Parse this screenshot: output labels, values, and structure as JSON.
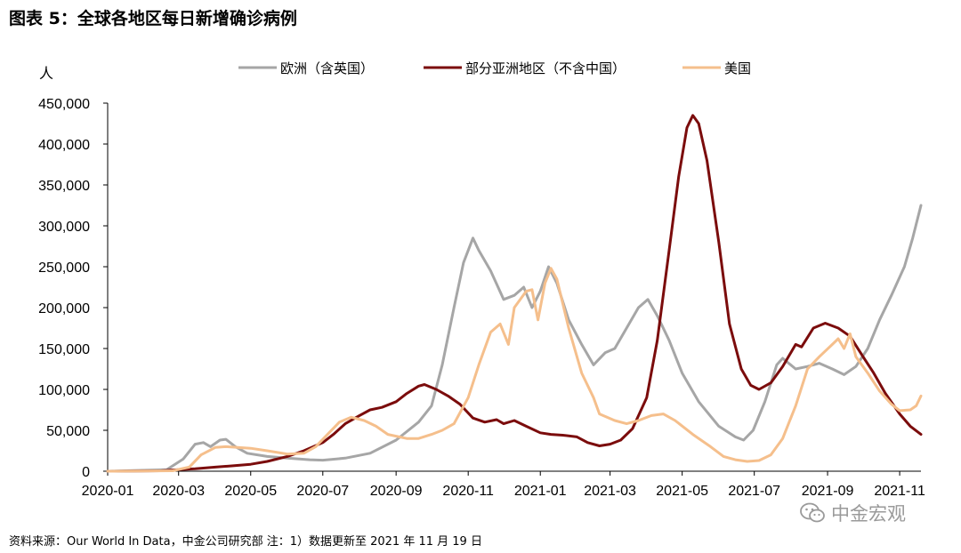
{
  "title": "图表 5：全球各地区每日新增确诊病例",
  "source": "资料来源：Our World In Data，中金公司研究部  注：1）数据更新至 2021 年 11 月 19 日",
  "watermark": {
    "text": "中金宏观",
    "icon": "wechat-icon",
    "color": "#9a9a9a"
  },
  "chart_data": {
    "type": "line",
    "ylabel": "人",
    "ylim": [
      0,
      450000
    ],
    "yticks": [
      0,
      50000,
      100000,
      150000,
      200000,
      250000,
      300000,
      350000,
      400000,
      450000
    ],
    "ytick_labels": [
      "0",
      "50,000",
      "100,000",
      "150,000",
      "200,000",
      "250,000",
      "300,000",
      "350,000",
      "400,000",
      "450,000"
    ],
    "xlim": [
      "2020-01-01",
      "2021-11-19"
    ],
    "xticks": [
      "2020-01-01",
      "2020-03-01",
      "2020-05-01",
      "2020-07-01",
      "2020-09-01",
      "2020-11-01",
      "2021-01-01",
      "2021-03-01",
      "2021-05-01",
      "2021-07-01",
      "2021-09-01",
      "2021-11-01"
    ],
    "xtick_labels": [
      "2020-01",
      "2020-03",
      "2020-05",
      "2020-07",
      "2020-09",
      "2020-11",
      "2021-01",
      "2021-03",
      "2021-05",
      "2021-07",
      "2021-09",
      "2021-11"
    ],
    "legend_position": "top",
    "grid": false,
    "series": [
      {
        "name": "欧洲（含英国）",
        "color": "#a6a6a6",
        "points": [
          [
            "2020-01-01",
            0
          ],
          [
            "2020-02-20",
            2000
          ],
          [
            "2020-03-05",
            15000
          ],
          [
            "2020-03-15",
            33000
          ],
          [
            "2020-03-22",
            35000
          ],
          [
            "2020-03-28",
            30000
          ],
          [
            "2020-04-05",
            38000
          ],
          [
            "2020-04-10",
            39000
          ],
          [
            "2020-04-18",
            30000
          ],
          [
            "2020-04-28",
            22000
          ],
          [
            "2020-05-15",
            18000
          ],
          [
            "2020-06-01",
            16000
          ],
          [
            "2020-06-20",
            14000
          ],
          [
            "2020-07-01",
            13500
          ],
          [
            "2020-07-20",
            16000
          ],
          [
            "2020-08-10",
            22000
          ],
          [
            "2020-09-01",
            38000
          ],
          [
            "2020-09-20",
            60000
          ],
          [
            "2020-10-01",
            80000
          ],
          [
            "2020-10-10",
            130000
          ],
          [
            "2020-10-20",
            200000
          ],
          [
            "2020-10-28",
            255000
          ],
          [
            "2020-11-05",
            285000
          ],
          [
            "2020-11-10",
            270000
          ],
          [
            "2020-11-20",
            245000
          ],
          [
            "2020-12-01",
            210000
          ],
          [
            "2020-12-10",
            215000
          ],
          [
            "2020-12-18",
            225000
          ],
          [
            "2020-12-25",
            200000
          ],
          [
            "2021-01-01",
            220000
          ],
          [
            "2021-01-08",
            250000
          ],
          [
            "2021-01-15",
            230000
          ],
          [
            "2021-01-25",
            185000
          ],
          [
            "2021-02-05",
            155000
          ],
          [
            "2021-02-15",
            130000
          ],
          [
            "2021-02-25",
            145000
          ],
          [
            "2021-03-05",
            150000
          ],
          [
            "2021-03-15",
            175000
          ],
          [
            "2021-03-25",
            200000
          ],
          [
            "2021-04-02",
            210000
          ],
          [
            "2021-04-10",
            190000
          ],
          [
            "2021-04-20",
            160000
          ],
          [
            "2021-05-01",
            120000
          ],
          [
            "2021-05-15",
            85000
          ],
          [
            "2021-06-01",
            55000
          ],
          [
            "2021-06-15",
            42000
          ],
          [
            "2021-06-22",
            38000
          ],
          [
            "2021-06-30",
            50000
          ],
          [
            "2021-07-10",
            85000
          ],
          [
            "2021-07-20",
            130000
          ],
          [
            "2021-07-25",
            138000
          ],
          [
            "2021-08-05",
            125000
          ],
          [
            "2021-08-15",
            128000
          ],
          [
            "2021-08-25",
            132000
          ],
          [
            "2021-09-05",
            125000
          ],
          [
            "2021-09-15",
            118000
          ],
          [
            "2021-09-25",
            128000
          ],
          [
            "2021-10-05",
            150000
          ],
          [
            "2021-10-15",
            185000
          ],
          [
            "2021-10-25",
            215000
          ],
          [
            "2021-11-05",
            250000
          ],
          [
            "2021-11-12",
            285000
          ],
          [
            "2021-11-19",
            325000
          ]
        ]
      },
      {
        "name": "部分亚洲地区（不含中国）",
        "color": "#7b0c0c",
        "points": [
          [
            "2020-01-01",
            0
          ],
          [
            "2020-02-15",
            500
          ],
          [
            "2020-03-01",
            2000
          ],
          [
            "2020-03-15",
            3000
          ],
          [
            "2020-04-01",
            5000
          ],
          [
            "2020-04-15",
            6500
          ],
          [
            "2020-05-01",
            8500
          ],
          [
            "2020-05-15",
            12000
          ],
          [
            "2020-06-01",
            18000
          ],
          [
            "2020-06-15",
            25000
          ],
          [
            "2020-07-01",
            35000
          ],
          [
            "2020-07-10",
            45000
          ],
          [
            "2020-07-20",
            58000
          ],
          [
            "2020-08-01",
            68000
          ],
          [
            "2020-08-10",
            75000
          ],
          [
            "2020-08-20",
            78000
          ],
          [
            "2020-09-01",
            85000
          ],
          [
            "2020-09-10",
            95000
          ],
          [
            "2020-09-20",
            104000
          ],
          [
            "2020-09-25",
            106000
          ],
          [
            "2020-10-05",
            100000
          ],
          [
            "2020-10-15",
            92000
          ],
          [
            "2020-10-25",
            82000
          ],
          [
            "2020-11-05",
            65000
          ],
          [
            "2020-11-15",
            60000
          ],
          [
            "2020-11-25",
            63000
          ],
          [
            "2020-12-01",
            58000
          ],
          [
            "2020-12-10",
            62000
          ],
          [
            "2020-12-20",
            55000
          ],
          [
            "2021-01-01",
            47000
          ],
          [
            "2021-01-10",
            45000
          ],
          [
            "2021-01-20",
            44000
          ],
          [
            "2021-02-01",
            42000
          ],
          [
            "2021-02-10",
            35000
          ],
          [
            "2021-02-20",
            31000
          ],
          [
            "2021-03-01",
            33000
          ],
          [
            "2021-03-10",
            38000
          ],
          [
            "2021-03-20",
            52000
          ],
          [
            "2021-04-01",
            90000
          ],
          [
            "2021-04-10",
            160000
          ],
          [
            "2021-04-20",
            270000
          ],
          [
            "2021-04-28",
            360000
          ],
          [
            "2021-05-05",
            420000
          ],
          [
            "2021-05-10",
            435000
          ],
          [
            "2021-05-15",
            425000
          ],
          [
            "2021-05-22",
            380000
          ],
          [
            "2021-06-01",
            280000
          ],
          [
            "2021-06-10",
            180000
          ],
          [
            "2021-06-20",
            125000
          ],
          [
            "2021-06-28",
            105000
          ],
          [
            "2021-07-05",
            100000
          ],
          [
            "2021-07-15",
            108000
          ],
          [
            "2021-07-25",
            128000
          ],
          [
            "2021-08-05",
            155000
          ],
          [
            "2021-08-10",
            152000
          ],
          [
            "2021-08-20",
            175000
          ],
          [
            "2021-08-30",
            181000
          ],
          [
            "2021-09-10",
            175000
          ],
          [
            "2021-09-20",
            165000
          ],
          [
            "2021-10-01",
            140000
          ],
          [
            "2021-10-10",
            120000
          ],
          [
            "2021-10-20",
            95000
          ],
          [
            "2021-11-01",
            70000
          ],
          [
            "2021-11-10",
            55000
          ],
          [
            "2021-11-19",
            45000
          ]
        ]
      },
      {
        "name": "美国",
        "color": "#f5bf8c",
        "points": [
          [
            "2020-01-01",
            0
          ],
          [
            "2020-02-25",
            500
          ],
          [
            "2020-03-10",
            5000
          ],
          [
            "2020-03-20",
            20000
          ],
          [
            "2020-04-01",
            29000
          ],
          [
            "2020-04-10",
            30000
          ],
          [
            "2020-04-20",
            29000
          ],
          [
            "2020-05-01",
            28000
          ],
          [
            "2020-05-15",
            25000
          ],
          [
            "2020-06-01",
            21000
          ],
          [
            "2020-06-15",
            22000
          ],
          [
            "2020-06-25",
            30000
          ],
          [
            "2020-07-05",
            45000
          ],
          [
            "2020-07-15",
            60000
          ],
          [
            "2020-07-25",
            66000
          ],
          [
            "2020-08-05",
            62000
          ],
          [
            "2020-08-15",
            55000
          ],
          [
            "2020-08-25",
            45000
          ],
          [
            "2020-09-10",
            40000
          ],
          [
            "2020-09-20",
            40000
          ],
          [
            "2020-10-01",
            45000
          ],
          [
            "2020-10-10",
            50000
          ],
          [
            "2020-10-20",
            58000
          ],
          [
            "2020-11-01",
            90000
          ],
          [
            "2020-11-10",
            130000
          ],
          [
            "2020-11-20",
            170000
          ],
          [
            "2020-11-28",
            180000
          ],
          [
            "2020-12-05",
            155000
          ],
          [
            "2020-12-10",
            200000
          ],
          [
            "2020-12-20",
            220000
          ],
          [
            "2020-12-25",
            222000
          ],
          [
            "2020-12-30",
            185000
          ],
          [
            "2021-01-05",
            230000
          ],
          [
            "2021-01-10",
            248000
          ],
          [
            "2021-01-15",
            235000
          ],
          [
            "2021-01-25",
            175000
          ],
          [
            "2021-02-05",
            120000
          ],
          [
            "2021-02-15",
            90000
          ],
          [
            "2021-02-20",
            70000
          ],
          [
            "2021-03-05",
            62000
          ],
          [
            "2021-03-15",
            58000
          ],
          [
            "2021-03-25",
            62000
          ],
          [
            "2021-04-05",
            68000
          ],
          [
            "2021-04-15",
            70000
          ],
          [
            "2021-04-25",
            62000
          ],
          [
            "2021-05-10",
            45000
          ],
          [
            "2021-05-25",
            30000
          ],
          [
            "2021-06-05",
            18000
          ],
          [
            "2021-06-15",
            14000
          ],
          [
            "2021-06-25",
            12000
          ],
          [
            "2021-07-05",
            13000
          ],
          [
            "2021-07-15",
            20000
          ],
          [
            "2021-07-25",
            40000
          ],
          [
            "2021-08-05",
            80000
          ],
          [
            "2021-08-15",
            125000
          ],
          [
            "2021-08-25",
            140000
          ],
          [
            "2021-09-05",
            155000
          ],
          [
            "2021-09-10",
            162000
          ],
          [
            "2021-09-15",
            150000
          ],
          [
            "2021-09-20",
            168000
          ],
          [
            "2021-09-25",
            140000
          ],
          [
            "2021-10-05",
            120000
          ],
          [
            "2021-10-15",
            98000
          ],
          [
            "2021-10-25",
            82000
          ],
          [
            "2021-11-01",
            74000
          ],
          [
            "2021-11-10",
            75000
          ],
          [
            "2021-11-15",
            80000
          ],
          [
            "2021-11-19",
            92000
          ]
        ]
      }
    ]
  }
}
